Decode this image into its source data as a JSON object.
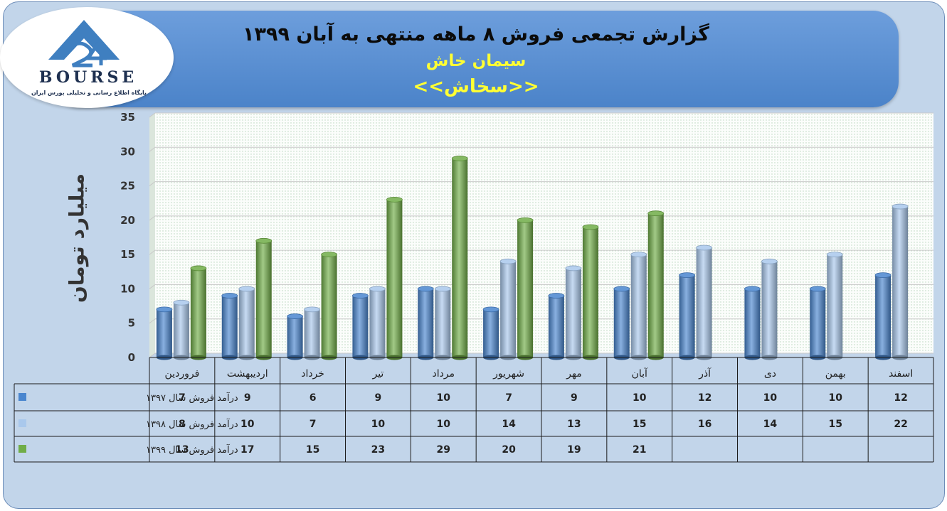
{
  "banner": {
    "title": "گزارش تجمعی فروش ۸ ماهه منتهی به آبان ۱۳۹۹",
    "company": "سیمان خاش",
    "symbol": "<<سخاش>>"
  },
  "logo": {
    "number": "24",
    "word": "BOURSE",
    "subtitle": "پایگاه اطلاع رسانی و تحلیلی بورس ایران"
  },
  "colors": {
    "series_1397": "#4a86cf",
    "series_1398": "#a9c8ec",
    "series_1399": "#70ad47"
  },
  "chart_data": {
    "type": "bar",
    "ylabel": "میلیارد تومان",
    "ylim": [
      0,
      35
    ],
    "yticks": [
      0,
      5,
      10,
      15,
      20,
      25,
      30,
      35
    ],
    "grid": true,
    "legend": "data-table-left",
    "categories": [
      "فروردین",
      "اردیبهشت",
      "خرداد",
      "تیر",
      "مرداد",
      "شهریور",
      "مهر",
      "آبان",
      "آذر",
      "دی",
      "بهمن",
      "اسفند"
    ],
    "series": [
      {
        "name": "درآمد فروش سال ۱۳۹۷",
        "values": [
          7,
          9,
          6,
          9,
          10,
          7,
          9,
          10,
          12,
          10,
          10,
          12
        ]
      },
      {
        "name": "درآمد فروش سال ۱۳۹۸",
        "values": [
          8,
          10,
          7,
          10,
          10,
          14,
          13,
          15,
          16,
          14,
          15,
          22
        ]
      },
      {
        "name": "درآمد فروش سال ۱۳۹۹",
        "values": [
          13,
          17,
          15,
          23,
          29,
          20,
          19,
          21,
          null,
          null,
          null,
          null
        ]
      }
    ]
  }
}
